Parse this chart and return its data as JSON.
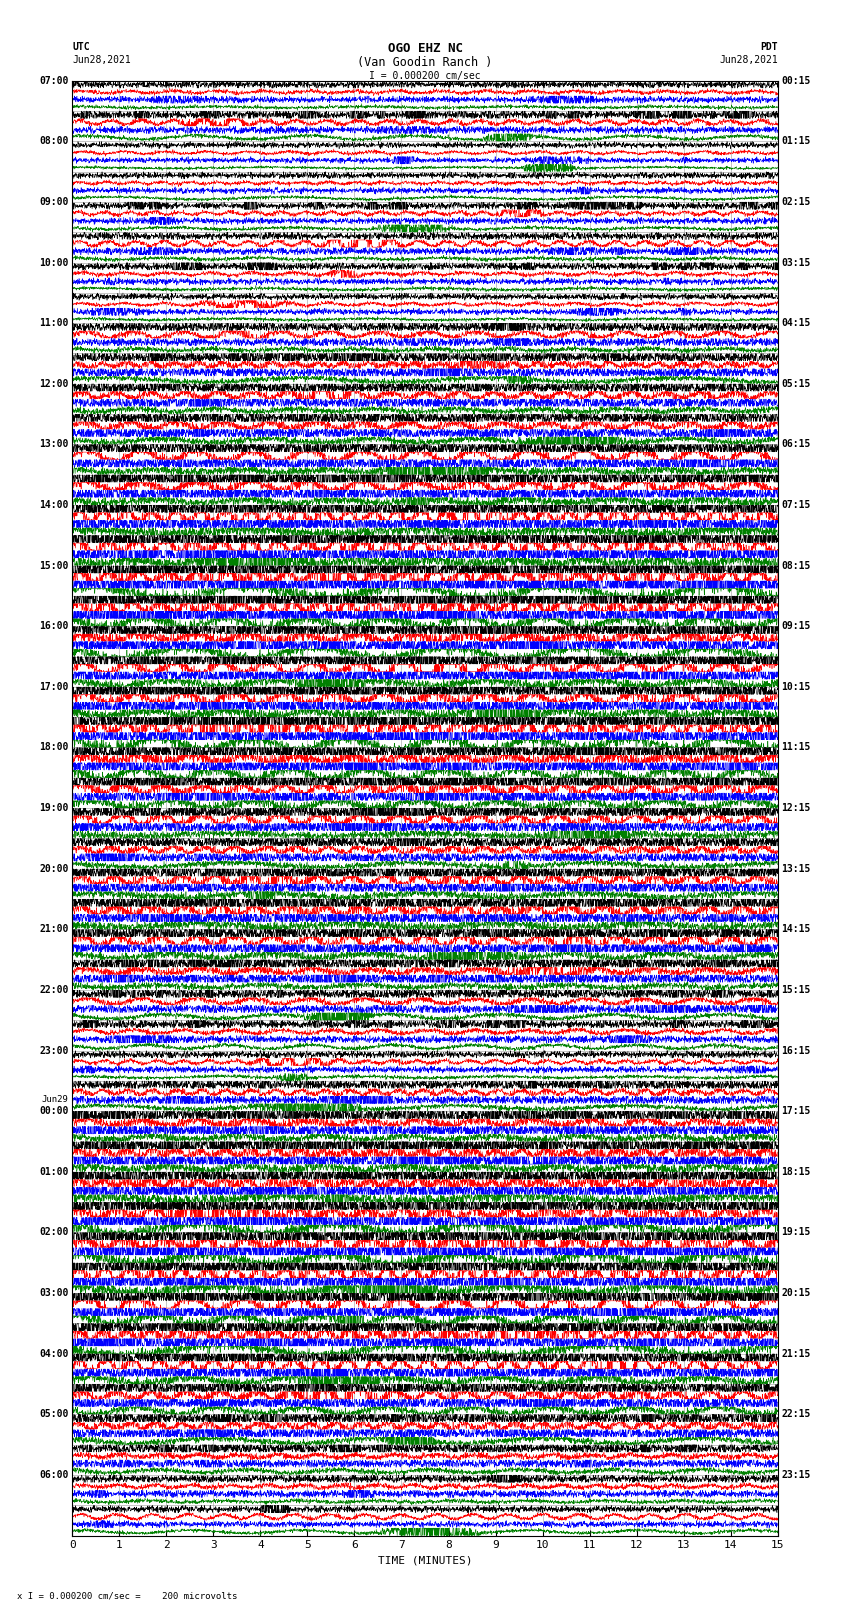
{
  "title_line1": "OGO EHZ NC",
  "title_line2": "(Van Goodin Ranch )",
  "scale_text": "I = 0.000200 cm/sec",
  "footer_text": "x I = 0.000200 cm/sec =    200 microvolts",
  "utc_label": "UTC",
  "utc_date": "Jun28,2021",
  "pdt_label": "PDT",
  "pdt_date": "Jun28,2021",
  "xlabel": "TIME (MINUTES)",
  "xlim": [
    0,
    15
  ],
  "xticks": [
    0,
    1,
    2,
    3,
    4,
    5,
    6,
    7,
    8,
    9,
    10,
    11,
    12,
    13,
    14,
    15
  ],
  "background_color": "#ffffff",
  "plot_bg": "#ffffff",
  "trace_colors": [
    "black",
    "red",
    "blue",
    "green"
  ],
  "left_times": [
    "07:00",
    "",
    "08:00",
    "",
    "09:00",
    "",
    "10:00",
    "",
    "11:00",
    "",
    "12:00",
    "",
    "13:00",
    "",
    "14:00",
    "",
    "15:00",
    "",
    "16:00",
    "",
    "17:00",
    "",
    "18:00",
    "",
    "19:00",
    "",
    "20:00",
    "",
    "21:00",
    "",
    "22:00",
    "",
    "23:00",
    "",
    "Jun29\n00:00",
    "",
    "01:00",
    "",
    "02:00",
    "",
    "03:00",
    "",
    "04:00",
    "",
    "05:00",
    "",
    "06:00",
    ""
  ],
  "right_times": [
    "00:15",
    "",
    "01:15",
    "",
    "02:15",
    "",
    "03:15",
    "",
    "04:15",
    "",
    "05:15",
    "",
    "06:15",
    "",
    "07:15",
    "",
    "08:15",
    "",
    "09:15",
    "",
    "10:15",
    "",
    "11:15",
    "",
    "12:15",
    "",
    "13:15",
    "",
    "14:15",
    "",
    "15:15",
    "",
    "16:15",
    "",
    "17:15",
    "",
    "18:15",
    "",
    "19:15",
    "",
    "20:15",
    "",
    "21:15",
    "",
    "22:15",
    "",
    "23:15",
    ""
  ],
  "num_rows": 48,
  "traces_per_row": 4,
  "title_fontsize": 9,
  "label_fontsize": 7,
  "axis_fontsize": 8,
  "grid_color": "#999999",
  "row_activity": [
    1.0,
    1.2,
    0.8,
    0.9,
    1.0,
    1.1,
    1.0,
    0.9,
    1.5,
    1.8,
    2.0,
    2.2,
    2.5,
    2.8,
    3.5,
    4.0,
    4.5,
    4.0,
    3.5,
    3.0,
    3.5,
    4.0,
    3.5,
    3.0,
    2.5,
    2.0,
    2.5,
    3.0,
    2.5,
    2.0,
    1.5,
    1.2,
    1.0,
    1.5,
    2.5,
    3.0,
    3.5,
    4.0,
    4.5,
    4.0,
    3.5,
    3.5,
    3.0,
    2.5,
    2.0,
    1.5,
    1.2,
    1.0
  ]
}
